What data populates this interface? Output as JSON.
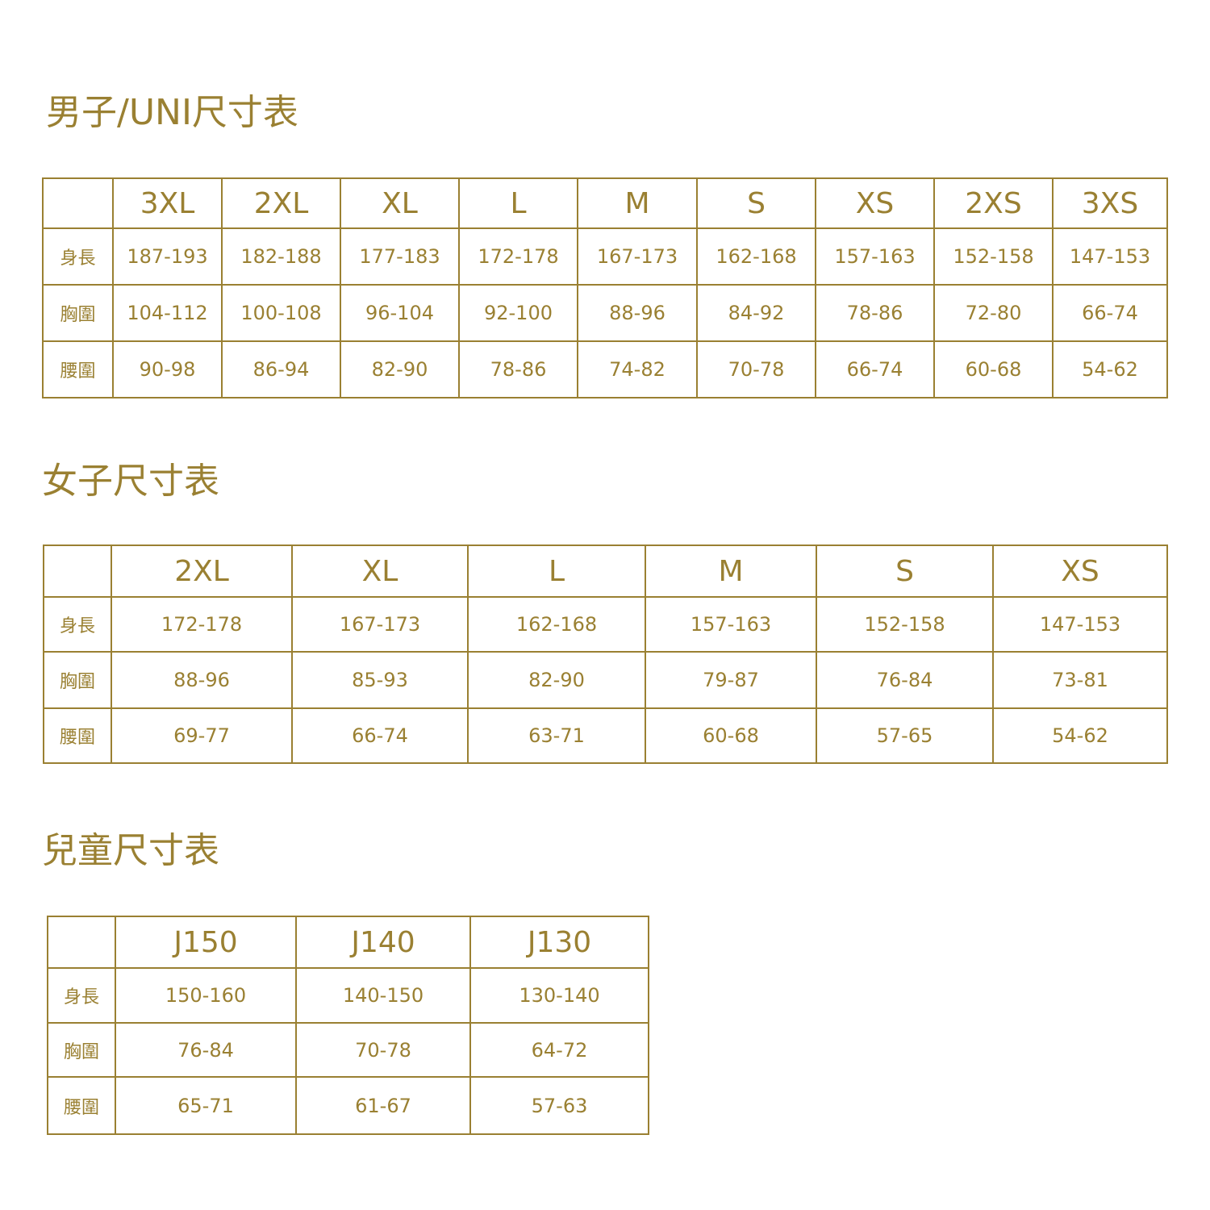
{
  "colors": {
    "accent": "#9a8032"
  },
  "tables": [
    {
      "title": "男子/UNI尺寸表",
      "sizes": [
        "3XL",
        "2XL",
        "XL",
        "L",
        "M",
        "S",
        "XS",
        "2XS",
        "3XS"
      ],
      "rows": [
        {
          "label": "身長",
          "values": [
            "187-193",
            "182-188",
            "177-183",
            "172-178",
            "167-173",
            "162-168",
            "157-163",
            "152-158",
            "147-153"
          ]
        },
        {
          "label": "胸圍",
          "values": [
            "104-112",
            "100-108",
            "96-104",
            "92-100",
            "88-96",
            "84-92",
            "78-86",
            "72-80",
            "66-74"
          ]
        },
        {
          "label": "腰圍",
          "values": [
            "90-98",
            "86-94",
            "82-90",
            "78-86",
            "74-82",
            "70-78",
            "66-74",
            "60-68",
            "54-62"
          ]
        }
      ]
    },
    {
      "title": "女子尺寸表",
      "sizes": [
        "2XL",
        "XL",
        "L",
        "M",
        "S",
        "XS"
      ],
      "rows": [
        {
          "label": "身長",
          "values": [
            "172-178",
            "167-173",
            "162-168",
            "157-163",
            "152-158",
            "147-153"
          ]
        },
        {
          "label": "胸圍",
          "values": [
            "88-96",
            "85-93",
            "82-90",
            "79-87",
            "76-84",
            "73-81"
          ]
        },
        {
          "label": "腰圍",
          "values": [
            "69-77",
            "66-74",
            "63-71",
            "60-68",
            "57-65",
            "54-62"
          ]
        }
      ]
    },
    {
      "title": "兒童尺寸表",
      "sizes": [
        "J150",
        "J140",
        "J130"
      ],
      "rows": [
        {
          "label": "身長",
          "values": [
            "150-160",
            "140-150",
            "130-140"
          ]
        },
        {
          "label": "胸圍",
          "values": [
            "76-84",
            "70-78",
            "64-72"
          ]
        },
        {
          "label": "腰圍",
          "values": [
            "65-71",
            "61-67",
            "57-63"
          ]
        }
      ]
    }
  ]
}
